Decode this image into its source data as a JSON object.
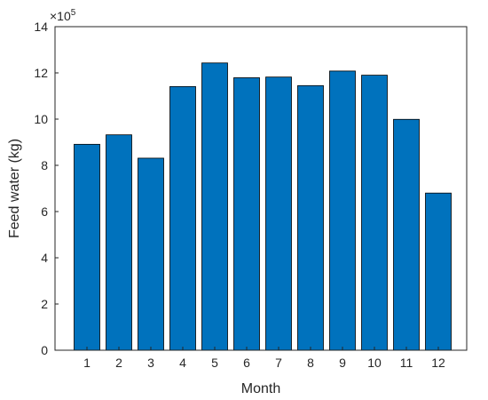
{
  "chart_data": {
    "type": "bar",
    "categories": [
      "1",
      "2",
      "3",
      "4",
      "5",
      "6",
      "7",
      "8",
      "9",
      "10",
      "11",
      "12"
    ],
    "values": [
      891000,
      932000,
      831000,
      1141000,
      1243000,
      1179000,
      1182000,
      1145000,
      1208000,
      1190000,
      999000,
      680000
    ],
    "xlabel": "Month",
    "ylabel": "Feed water (kg)",
    "ylim": [
      0,
      1400000
    ],
    "y_ticks": [
      "0",
      "2",
      "4",
      "6",
      "8",
      "10",
      "12",
      "14"
    ],
    "y_tick_values": [
      0,
      200000,
      400000,
      600000,
      800000,
      1000000,
      1200000,
      1400000
    ],
    "y_exponent": {
      "base": "×10",
      "power": "5"
    },
    "grid": false,
    "bar_color": "#0072BD",
    "bar_edge_color": "#000000"
  }
}
